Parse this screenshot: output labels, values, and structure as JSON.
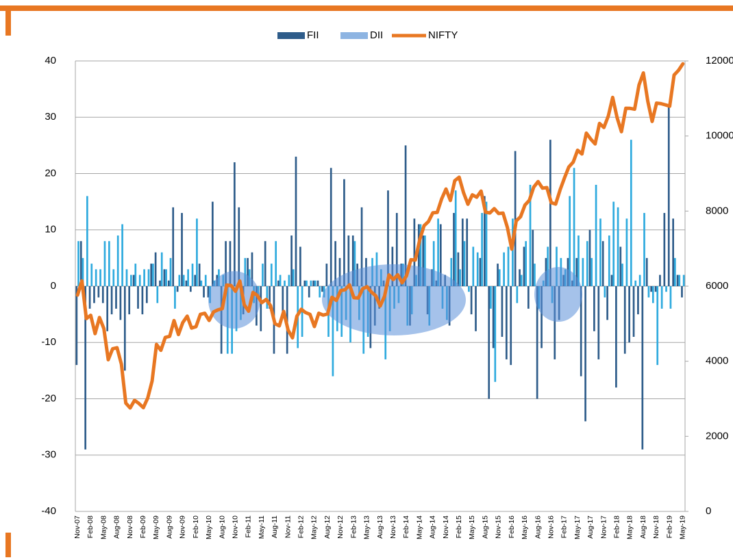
{
  "chart_data": {
    "type": "bar",
    "categories": [
      "Nov-07",
      null,
      null,
      "Feb-08",
      null,
      null,
      "May-08",
      null,
      null,
      "Aug-08",
      null,
      null,
      "Nov-08",
      null,
      null,
      "Feb-09",
      null,
      null,
      "May-09",
      null,
      null,
      "Aug-09",
      null,
      null,
      "Nov-09",
      null,
      null,
      "Feb-10",
      null,
      null,
      "May-10",
      null,
      null,
      "Aug-10",
      null,
      null,
      "Nov-10",
      null,
      null,
      "Feb-11",
      null,
      null,
      "May-11",
      null,
      null,
      "Aug-11",
      null,
      null,
      "Nov-11",
      null,
      null,
      "Feb-12",
      null,
      null,
      "May-12",
      null,
      null,
      "Aug-12",
      null,
      null,
      "Nov-12",
      null,
      null,
      "Feb-13",
      null,
      null,
      "May-13",
      null,
      null,
      "Aug-13",
      null,
      null,
      "Nov-13",
      null,
      null,
      "Feb-14",
      null,
      null,
      "May-14",
      null,
      null,
      "Aug-14",
      null,
      null,
      "Nov-14",
      null,
      null,
      "Feb-15",
      null,
      null,
      "May-15",
      null,
      null,
      "Aug-15",
      null,
      null,
      "Nov-15",
      null,
      null,
      "Feb-16",
      null,
      null,
      "May-16",
      null,
      null,
      "Aug-16",
      null,
      null,
      "Nov-16",
      null,
      null,
      "Feb-17",
      null,
      null,
      "May-17",
      null,
      null,
      "Aug-17",
      null,
      null,
      "Nov-17",
      null,
      null,
      "Feb-18",
      null,
      null,
      "May-18",
      null,
      null,
      "Aug-18",
      null,
      null,
      "Nov-18",
      null,
      null,
      "Feb-19",
      null,
      null,
      "May-19"
    ],
    "series": [
      {
        "name": "FII",
        "color": "#2e5c8a",
        "values": [
          -14,
          8,
          -29,
          -4,
          -3,
          -2,
          -3,
          -8,
          -5,
          -4,
          -6,
          -15,
          -5,
          2,
          -4,
          -5,
          -3,
          4,
          6,
          1,
          3,
          1,
          14,
          -1,
          13,
          1,
          -1,
          2,
          4,
          -2,
          -2,
          15,
          2,
          -12,
          8,
          8,
          22,
          14,
          -5,
          5,
          6,
          -7,
          -8,
          8,
          -4,
          -12,
          1,
          -5,
          -12,
          9,
          23,
          7,
          1,
          -2,
          1,
          1,
          -1,
          4,
          21,
          8,
          5,
          19,
          9,
          9,
          4,
          14,
          5,
          -11,
          -7,
          -4,
          1,
          17,
          7,
          13,
          4,
          25,
          -7,
          12,
          11,
          9,
          -5,
          3,
          1,
          11,
          2,
          -7,
          13,
          6,
          12,
          12,
          -5,
          -8,
          5,
          16,
          -20,
          -11,
          4,
          -9,
          -13,
          -14,
          24,
          3,
          7,
          -4,
          10,
          -20,
          -11,
          5,
          26,
          -13,
          -6,
          2,
          5,
          1,
          5,
          -16,
          -24,
          10,
          -8,
          -13,
          8,
          -6,
          2,
          -18,
          7,
          -12,
          -10,
          -9,
          -5,
          -29,
          5,
          -1,
          -1,
          2,
          13,
          32,
          12,
          2,
          -2
        ]
      },
      {
        "name": "DII",
        "color": "#2eaade",
        "values": [
          8,
          5,
          16,
          4,
          3,
          3,
          8,
          8,
          3,
          9,
          11,
          3,
          2,
          4,
          2,
          3,
          3,
          4,
          -3,
          6,
          3,
          5,
          -4,
          2,
          2,
          3,
          4,
          12,
          1,
          2,
          -3,
          1,
          3,
          2,
          -12,
          -12,
          -8,
          -6,
          5,
          3,
          -3,
          -2,
          4,
          -4,
          4,
          8,
          2,
          1,
          2,
          3,
          -11,
          -9,
          1,
          1,
          1,
          -2,
          -2,
          -9,
          -16,
          -8,
          -9,
          -6,
          -10,
          8,
          -6,
          -12,
          -9,
          5,
          6,
          3,
          -13,
          -8,
          -4,
          -3,
          4,
          -7,
          -5,
          2,
          11,
          9,
          -7,
          8,
          12,
          -4,
          -6,
          5,
          17,
          3,
          8,
          -1,
          7,
          6,
          13,
          15,
          -4,
          -17,
          3,
          6,
          7,
          12,
          -3,
          2,
          8,
          18,
          4,
          -4,
          1,
          7,
          -3,
          7,
          5,
          3,
          16,
          21,
          9,
          5,
          8,
          5,
          18,
          12,
          -2,
          9,
          15,
          14,
          4,
          12,
          26,
          1,
          2,
          13,
          -2,
          -3,
          -14,
          -4,
          -1,
          -4,
          5,
          2,
          2
        ]
      },
      {
        "name": "NIFTY",
        "color": "#e87722",
        "type": "line",
        "axis": "y2",
        "values": [
          5763,
          6139,
          5137,
          5224,
          4735,
          5166,
          4870,
          4040,
          4333,
          4360,
          3921,
          2885,
          2755,
          2959,
          2874,
          2763,
          3021,
          3474,
          4449,
          4291,
          4636,
          4662,
          5084,
          4712,
          5033,
          5201,
          4882,
          4922,
          5249,
          5278,
          5087,
          5313,
          5368,
          5402,
          6030,
          6018,
          5863,
          6135,
          5506,
          5333,
          5834,
          5750,
          5560,
          5647,
          5482,
          5001,
          4943,
          5327,
          4832,
          4624,
          5199,
          5385,
          5296,
          5248,
          4924,
          5279,
          5229,
          5259,
          5703,
          5620,
          5880,
          5905,
          6035,
          5693,
          5683,
          5930,
          5986,
          5842,
          5742,
          5471,
          5735,
          6299,
          6176,
          6304,
          6090,
          6277,
          6704,
          6696,
          7230,
          7611,
          7721,
          7954,
          7965,
          8322,
          8588,
          8283,
          8809,
          8902,
          8491,
          8182,
          8434,
          8369,
          8533,
          7971,
          7949,
          8066,
          7935,
          7946,
          7564,
          6987,
          7738,
          7850,
          8160,
          8288,
          8639,
          8786,
          8611,
          8626,
          8224,
          8186,
          8561,
          8880,
          9174,
          9304,
          9621,
          9521,
          10077,
          9918,
          9789,
          10335,
          10227,
          10531,
          11028,
          10493,
          10114,
          10739,
          10736,
          10714,
          11357,
          11681,
          10930,
          10387,
          10877,
          10863,
          10831,
          10793,
          11624,
          11748,
          11923
        ]
      }
    ],
    "ylim": [
      -40,
      40
    ],
    "yticks": [
      -40,
      -30,
      -20,
      -10,
      0,
      10,
      20,
      30,
      40
    ],
    "y2lim": [
      0,
      12000
    ],
    "y2ticks": [
      0,
      2000,
      4000,
      6000,
      8000,
      10000,
      12000
    ],
    "grid": true,
    "legend": "top"
  }
}
